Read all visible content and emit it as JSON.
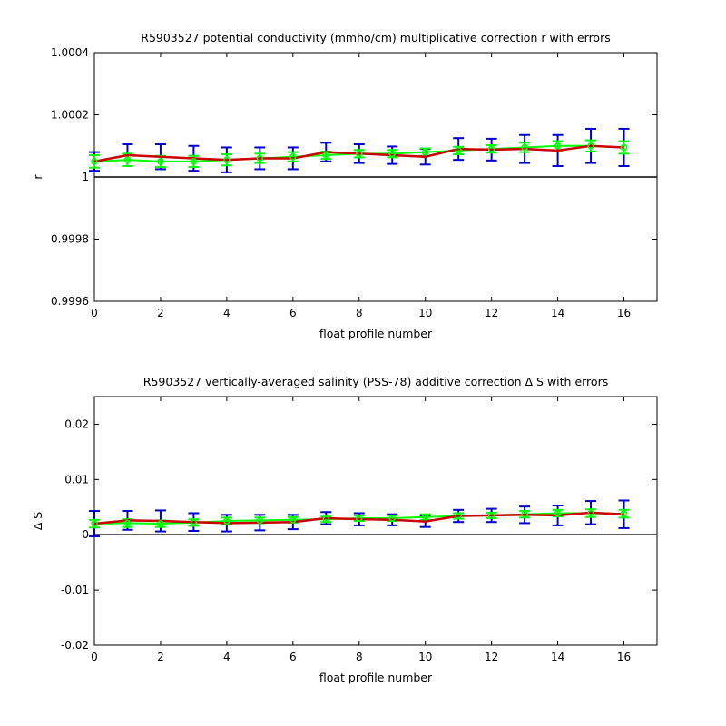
{
  "colors": {
    "fit_line": "#cc0000",
    "fit_error": "#0000cc",
    "mapped_line": "#00ff00",
    "zero_line": "#000000"
  },
  "chart_data": [
    {
      "type": "line",
      "title": "R5903527 potential conductivity (mmho/cm) multiplicative correction r with errors",
      "xlabel": "float profile number",
      "ylabel": "r",
      "xlim": [
        0,
        17
      ],
      "ylim": [
        0.9996,
        1.0004
      ],
      "xticks": [
        0,
        2,
        4,
        6,
        8,
        10,
        12,
        14,
        16
      ],
      "xtick_labels": [
        "0",
        "2",
        "4",
        "6",
        "8",
        "10",
        "12",
        "14",
        "16"
      ],
      "yticks": [
        0.9996,
        0.9998,
        1.0,
        1.0002,
        1.0004
      ],
      "ytick_labels": [
        "0.9996",
        "0.9998",
        "1",
        "1.0002",
        "1.0004"
      ],
      "reference_line": 1.0,
      "grid": false,
      "x": [
        0,
        1,
        2,
        3,
        4,
        5,
        6,
        7,
        8,
        9,
        10,
        11,
        12,
        13,
        14,
        15,
        16
      ],
      "series": [
        {
          "role": "fit",
          "values": [
            1.00005,
            1.00007,
            1.000065,
            1.00006,
            1.000055,
            1.00006,
            1.00006,
            1.00008,
            1.000075,
            1.00007,
            1.000065,
            1.00009,
            1.000088,
            1.00009,
            1.000085,
            1.0001,
            1.000095
          ],
          "errors": [
            3e-05,
            3.5e-05,
            4e-05,
            4e-05,
            4e-05,
            3.5e-05,
            3.5e-05,
            3e-05,
            3e-05,
            2.8e-05,
            2.5e-05,
            3.5e-05,
            3.5e-05,
            4.5e-05,
            5e-05,
            5.5e-05,
            6e-05
          ]
        },
        {
          "role": "mapped",
          "values": [
            1.00005,
            1.000055,
            1.00005,
            1.00005,
            1.000055,
            1.00006,
            1.000065,
            1.00007,
            1.000075,
            1.000075,
            1.00008,
            1.000085,
            1.00009,
            1.000095,
            1.0001,
            1.0001,
            1.000095
          ],
          "errors": [
            2e-05,
            2e-05,
            1.8e-05,
            1.8e-05,
            1.8e-05,
            1.5e-05,
            1.5e-05,
            1.2e-05,
            1.2e-05,
            1.2e-05,
            1.2e-05,
            1.2e-05,
            1.2e-05,
            1.5e-05,
            1.5e-05,
            1.8e-05,
            2e-05
          ]
        }
      ]
    },
    {
      "type": "line",
      "title": "R5903527 vertically-averaged salinity (PSS-78) additive correction Δ S with errors",
      "xlabel": "float profile number",
      "ylabel": "Δ S",
      "xlim": [
        0,
        17
      ],
      "ylim": [
        -0.02,
        0.025
      ],
      "xticks": [
        0,
        2,
        4,
        6,
        8,
        10,
        12,
        14,
        16
      ],
      "xtick_labels": [
        "0",
        "2",
        "4",
        "6",
        "8",
        "10",
        "12",
        "14",
        "16"
      ],
      "yticks": [
        -0.02,
        -0.01,
        0,
        0.01,
        0.02
      ],
      "ytick_labels": [
        "-0.02",
        "-0.01",
        "0",
        "0.01",
        "0.02"
      ],
      "reference_line": 0,
      "grid": false,
      "x": [
        0,
        1,
        2,
        3,
        4,
        5,
        6,
        7,
        8,
        9,
        10,
        11,
        12,
        13,
        14,
        15,
        16
      ],
      "series": [
        {
          "role": "fit",
          "values": [
            0.002,
            0.0026,
            0.0025,
            0.0023,
            0.0021,
            0.0022,
            0.0023,
            0.003,
            0.0028,
            0.0027,
            0.0024,
            0.0034,
            0.0035,
            0.0036,
            0.0035,
            0.004,
            0.0037
          ],
          "errors": [
            0.0023,
            0.0017,
            0.0019,
            0.0016,
            0.0015,
            0.0014,
            0.0013,
            0.0011,
            0.0011,
            0.001,
            0.001,
            0.0011,
            0.0012,
            0.0015,
            0.0018,
            0.0021,
            0.0025
          ]
        },
        {
          "role": "mapped",
          "values": [
            0.002,
            0.0021,
            0.002,
            0.0022,
            0.0025,
            0.0026,
            0.0027,
            0.0028,
            0.003,
            0.003,
            0.0032,
            0.0034,
            0.0035,
            0.0037,
            0.0039,
            0.0039,
            0.0038
          ],
          "errors": [
            0.0007,
            0.0007,
            0.0006,
            0.0006,
            0.0006,
            0.0005,
            0.0005,
            0.0005,
            0.0005,
            0.0005,
            0.0005,
            0.0005,
            0.0005,
            0.0006,
            0.0006,
            0.0007,
            0.0007
          ]
        }
      ]
    }
  ]
}
